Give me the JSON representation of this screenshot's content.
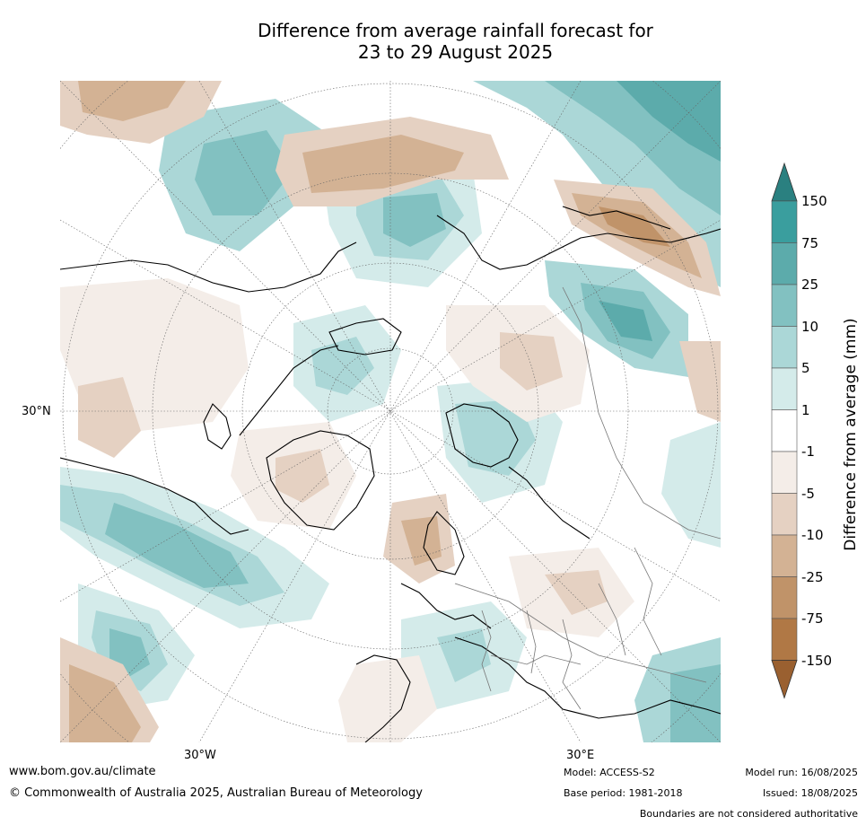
{
  "title_line1": "Difference from average rainfall forecast for",
  "title_line2": "23 to 29 August 2025",
  "axes": {
    "lat_label": "30°N",
    "lon_labels": [
      "30°W",
      "30°E"
    ]
  },
  "colorbar": {
    "label": "Difference from average (mm)",
    "ticks": [
      "150",
      "75",
      "25",
      "10",
      "5",
      "1",
      "-1",
      "-5",
      "-10",
      "-25",
      "-75",
      "-150"
    ],
    "colors": [
      "#2a8080",
      "#3a9e9e",
      "#5cabab",
      "#82c1c1",
      "#abd7d7",
      "#d4ebea",
      "#ffffff",
      "#f4ede8",
      "#e5d1c2",
      "#d3b294",
      "#c09369",
      "#b07845",
      "#9a6030"
    ]
  },
  "footer": {
    "website": "www.bom.gov.au/climate",
    "copyright": "© Commonwealth of Australia 2025, Australian Bureau of Meteorology",
    "model": "Model: ACCESS-S2",
    "base_period": "Base period: 1981-2018",
    "model_run": "Model run: 16/08/2025",
    "issued": "Issued: 18/08/2025",
    "disclaimer": "Boundaries are not considered authoritative"
  }
}
